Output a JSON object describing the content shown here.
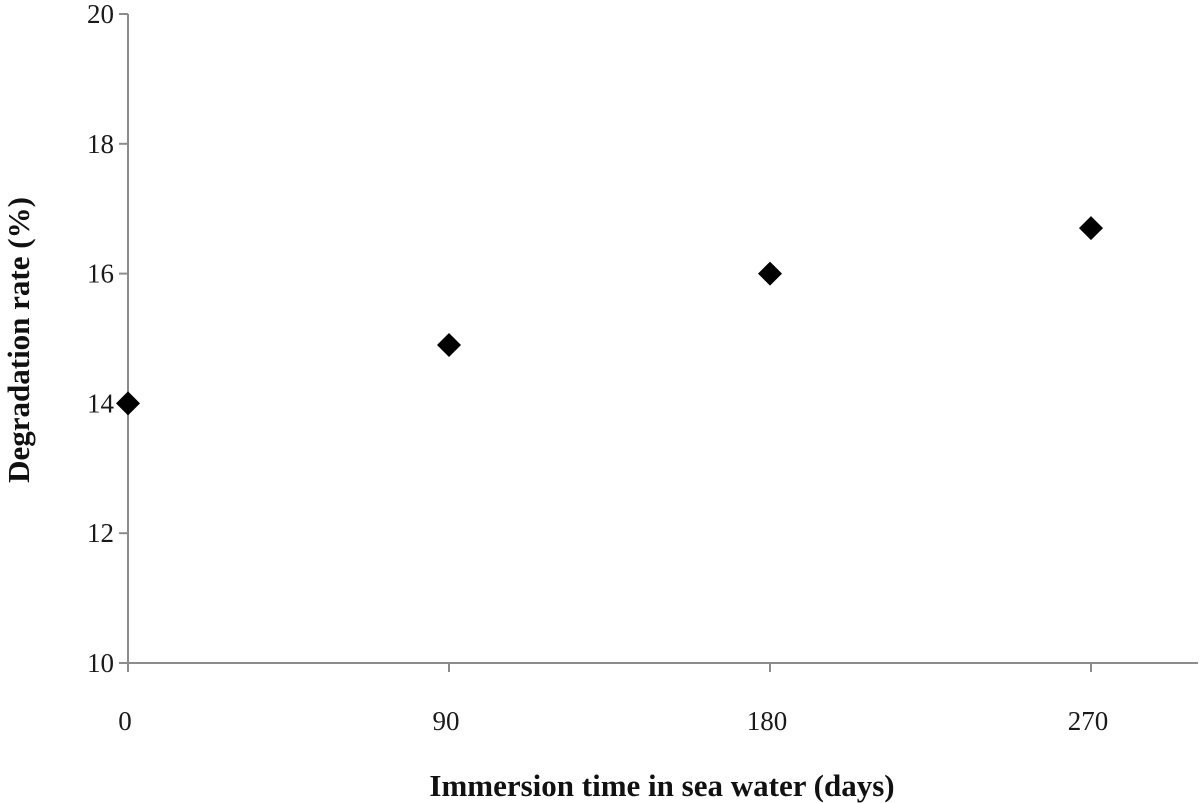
{
  "chart_data": {
    "type": "scatter",
    "title": "",
    "xlabel": "Immersion  time in sea water (days)",
    "ylabel": "Degradation rate (%)",
    "x_ticks": [
      "0",
      "90",
      "180",
      "270"
    ],
    "y_ticks": [
      "10",
      "12",
      "14",
      "16",
      "18",
      "20"
    ],
    "xlim": [
      0,
      300
    ],
    "ylim": [
      10,
      20
    ],
    "grid": false,
    "marker": "diamond",
    "marker_color": "#000000",
    "series": [
      {
        "x": [
          0,
          90,
          180,
          270
        ],
        "y": [
          14.0,
          14.9,
          16.0,
          16.7
        ]
      }
    ]
  }
}
